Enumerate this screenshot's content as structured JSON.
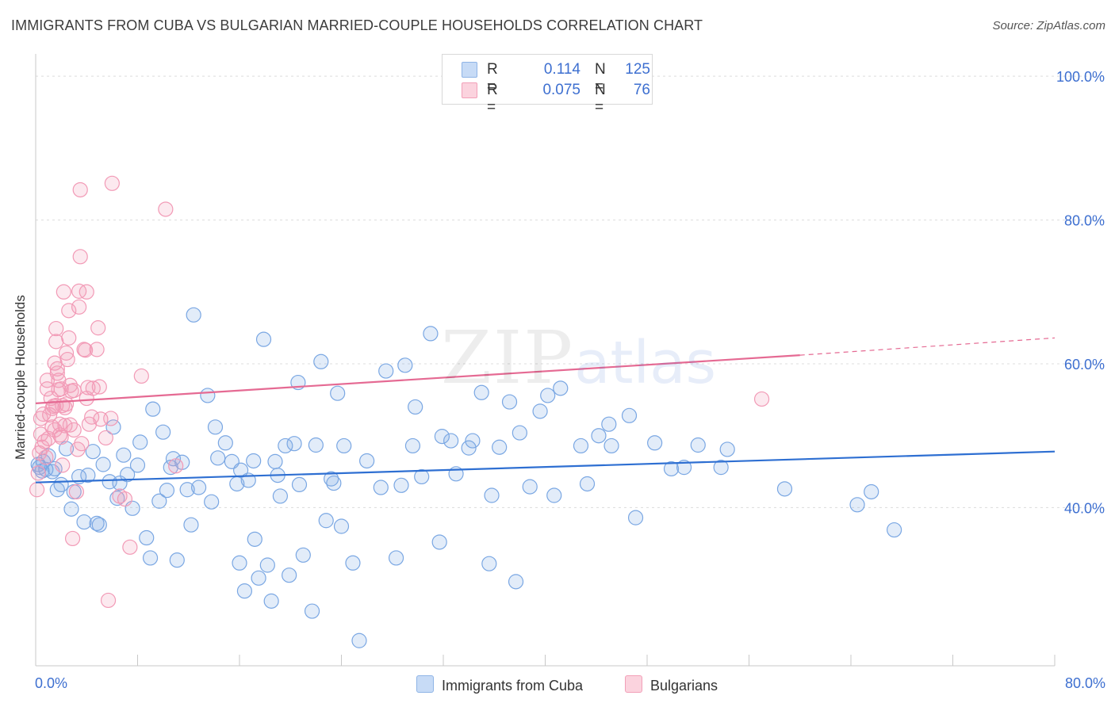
{
  "title": "IMMIGRANTS FROM CUBA VS BULGARIAN MARRIED-COUPLE HOUSEHOLDS CORRELATION CHART",
  "source": "Source: ZipAtlas.com",
  "watermark": {
    "zip": "ZIP",
    "atlas": "atlas"
  },
  "legend_top": [
    {
      "r_label": "R =",
      "r_value": "0.114",
      "n_label": "N =",
      "n_value": "125",
      "color": "#a9c8f0"
    },
    {
      "r_label": "R =",
      "r_value": "0.075",
      "n_label": "N =",
      "n_value": "76",
      "color": "#f7b7c9"
    }
  ],
  "legend_bottom": [
    {
      "label": "Immigrants from Cuba",
      "color": "#a9c8f0"
    },
    {
      "label": "Bulgarians",
      "color": "#f7b7c9"
    }
  ],
  "colors": {
    "cuba_point": "#7aa7e3",
    "cuba_line": "#2e6fd2",
    "bulg_point": "#f29ab6",
    "bulg_line": "#e56a93",
    "tick_label": "#3d6fd0"
  },
  "chart_data": {
    "type": "scatter",
    "title": "IMMIGRANTS FROM CUBA VS BULGARIAN MARRIED-COUPLE HOUSEHOLDS CORRELATION CHART",
    "xlabel": "",
    "ylabel": "Married-couple Households",
    "xlim": [
      0,
      80
    ],
    "ylim": [
      18,
      102
    ],
    "x_tick_labels": [
      "0.0%",
      "80.0%"
    ],
    "y_ticks": [
      40,
      60,
      80,
      100
    ],
    "y_tick_labels": [
      "40.0%",
      "60.0%",
      "80.0%",
      "100.0%"
    ],
    "grid": true,
    "legend_position": "top-center",
    "series": [
      {
        "name": "Immigrants from Cuba",
        "trend": {
          "x": [
            0,
            80
          ],
          "y": [
            43.5,
            47.8
          ]
        },
        "points": [
          [
            0.2,
            46.0
          ],
          [
            0.3,
            45.6
          ],
          [
            0.5,
            45.1
          ],
          [
            0.6,
            46.4
          ],
          [
            0.8,
            45.3
          ],
          [
            1.0,
            47.2
          ],
          [
            1.3,
            45.0
          ],
          [
            1.5,
            45.4
          ],
          [
            1.7,
            42.5
          ],
          [
            2.0,
            43.2
          ],
          [
            2.4,
            48.2
          ],
          [
            2.8,
            39.8
          ],
          [
            3.0,
            42.2
          ],
          [
            3.4,
            44.3
          ],
          [
            3.8,
            38.0
          ],
          [
            4.1,
            44.5
          ],
          [
            4.5,
            47.8
          ],
          [
            4.8,
            37.8
          ],
          [
            5.0,
            37.6
          ],
          [
            5.3,
            46.0
          ],
          [
            5.8,
            43.6
          ],
          [
            6.1,
            51.2
          ],
          [
            6.4,
            41.3
          ],
          [
            6.6,
            43.4
          ],
          [
            6.9,
            47.3
          ],
          [
            7.2,
            44.6
          ],
          [
            7.6,
            39.9
          ],
          [
            8.0,
            45.9
          ],
          [
            8.2,
            49.1
          ],
          [
            8.7,
            35.8
          ],
          [
            9.0,
            33.0
          ],
          [
            9.2,
            53.7
          ],
          [
            9.7,
            40.9
          ],
          [
            10.0,
            50.5
          ],
          [
            10.3,
            42.4
          ],
          [
            10.6,
            45.6
          ],
          [
            10.8,
            46.8
          ],
          [
            11.1,
            32.7
          ],
          [
            11.5,
            46.3
          ],
          [
            11.9,
            42.5
          ],
          [
            12.2,
            37.6
          ],
          [
            12.4,
            66.8
          ],
          [
            12.8,
            42.8
          ],
          [
            13.5,
            55.6
          ],
          [
            13.8,
            40.8
          ],
          [
            14.1,
            51.2
          ],
          [
            14.3,
            46.9
          ],
          [
            14.9,
            49.0
          ],
          [
            15.4,
            46.4
          ],
          [
            15.8,
            43.3
          ],
          [
            16.0,
            32.3
          ],
          [
            16.1,
            45.2
          ],
          [
            16.4,
            28.4
          ],
          [
            16.7,
            43.8
          ],
          [
            17.1,
            46.5
          ],
          [
            17.2,
            35.6
          ],
          [
            17.5,
            30.2
          ],
          [
            17.9,
            63.4
          ],
          [
            18.2,
            32.0
          ],
          [
            18.5,
            27.0
          ],
          [
            18.8,
            46.4
          ],
          [
            19.0,
            44.5
          ],
          [
            19.2,
            41.6
          ],
          [
            19.6,
            48.6
          ],
          [
            19.9,
            30.6
          ],
          [
            20.3,
            48.9
          ],
          [
            20.6,
            57.4
          ],
          [
            20.7,
            43.2
          ],
          [
            21.0,
            33.4
          ],
          [
            21.7,
            25.6
          ],
          [
            22.0,
            48.7
          ],
          [
            22.4,
            60.3
          ],
          [
            22.8,
            38.2
          ],
          [
            23.2,
            44.0
          ],
          [
            23.4,
            43.4
          ],
          [
            23.7,
            55.9
          ],
          [
            24.0,
            37.4
          ],
          [
            24.2,
            48.6
          ],
          [
            24.9,
            32.3
          ],
          [
            25.4,
            21.5
          ],
          [
            26.0,
            46.5
          ],
          [
            27.1,
            42.8
          ],
          [
            27.5,
            59.0
          ],
          [
            28.3,
            33.0
          ],
          [
            28.7,
            43.1
          ],
          [
            29.0,
            59.8
          ],
          [
            29.6,
            48.6
          ],
          [
            29.8,
            54.0
          ],
          [
            30.3,
            44.3
          ],
          [
            31.0,
            64.2
          ],
          [
            31.7,
            35.2
          ],
          [
            31.9,
            49.9
          ],
          [
            32.6,
            49.3
          ],
          [
            33.0,
            44.7
          ],
          [
            34.0,
            48.3
          ],
          [
            34.3,
            49.3
          ],
          [
            35.0,
            56.0
          ],
          [
            35.6,
            32.2
          ],
          [
            35.8,
            41.7
          ],
          [
            36.4,
            48.4
          ],
          [
            37.2,
            54.7
          ],
          [
            37.7,
            29.7
          ],
          [
            38.0,
            50.4
          ],
          [
            38.8,
            42.9
          ],
          [
            39.6,
            53.4
          ],
          [
            40.2,
            55.6
          ],
          [
            40.7,
            41.7
          ],
          [
            41.2,
            56.6
          ],
          [
            42.8,
            48.6
          ],
          [
            43.3,
            43.3
          ],
          [
            44.2,
            50.0
          ],
          [
            45.0,
            51.6
          ],
          [
            45.2,
            48.6
          ],
          [
            46.6,
            52.8
          ],
          [
            47.1,
            38.6
          ],
          [
            48.6,
            49.0
          ],
          [
            49.9,
            45.4
          ],
          [
            50.9,
            45.6
          ],
          [
            52.0,
            48.7
          ],
          [
            53.8,
            45.6
          ],
          [
            54.3,
            48.1
          ],
          [
            58.8,
            42.6
          ],
          [
            64.5,
            40.4
          ],
          [
            65.6,
            42.2
          ],
          [
            67.4,
            36.9
          ]
        ]
      },
      {
        "name": "Bulgarians",
        "trend": {
          "x": [
            0,
            60
          ],
          "y": [
            54.5,
            61.2
          ]
        },
        "trend_dashed": {
          "x": [
            60,
            80
          ],
          "y": [
            61.2,
            63.6
          ]
        },
        "points": [
          [
            0.1,
            42.5
          ],
          [
            0.2,
            44.8
          ],
          [
            0.3,
            47.6
          ],
          [
            0.4,
            50.2
          ],
          [
            0.4,
            52.4
          ],
          [
            0.5,
            48.4
          ],
          [
            0.6,
            53.0
          ],
          [
            0.7,
            49.2
          ],
          [
            0.8,
            47.0
          ],
          [
            0.9,
            57.7
          ],
          [
            0.9,
            56.5
          ],
          [
            1.0,
            49.6
          ],
          [
            1.1,
            52.9
          ],
          [
            1.2,
            55.2
          ],
          [
            1.3,
            51.2
          ],
          [
            1.3,
            53.8
          ],
          [
            1.4,
            54.1
          ],
          [
            1.5,
            50.8
          ],
          [
            1.5,
            60.1
          ],
          [
            1.6,
            54.2
          ],
          [
            1.6,
            63.1
          ],
          [
            1.6,
            64.9
          ],
          [
            1.7,
            59.3
          ],
          [
            1.7,
            58.7
          ],
          [
            1.8,
            57.7
          ],
          [
            1.8,
            56.4
          ],
          [
            1.9,
            50.1
          ],
          [
            1.9,
            51.6
          ],
          [
            2.0,
            56.5
          ],
          [
            2.0,
            49.8
          ],
          [
            2.1,
            54.2
          ],
          [
            2.1,
            45.9
          ],
          [
            2.2,
            70.0
          ],
          [
            2.3,
            51.4
          ],
          [
            2.3,
            53.9
          ],
          [
            2.4,
            54.4
          ],
          [
            2.4,
            61.5
          ],
          [
            2.5,
            60.6
          ],
          [
            2.6,
            67.4
          ],
          [
            2.6,
            63.6
          ],
          [
            2.7,
            57.0
          ],
          [
            2.7,
            51.5
          ],
          [
            2.8,
            56.2
          ],
          [
            2.9,
            35.7
          ],
          [
            3.0,
            56.3
          ],
          [
            3.0,
            50.8
          ],
          [
            3.2,
            42.2
          ],
          [
            3.3,
            48.1
          ],
          [
            3.4,
            70.1
          ],
          [
            3.4,
            67.9
          ],
          [
            3.5,
            74.9
          ],
          [
            3.5,
            84.2
          ],
          [
            3.6,
            48.9
          ],
          [
            3.8,
            62.0
          ],
          [
            3.9,
            61.9
          ],
          [
            4.0,
            70.0
          ],
          [
            4.0,
            55.2
          ],
          [
            4.1,
            56.7
          ],
          [
            4.2,
            51.6
          ],
          [
            4.4,
            52.6
          ],
          [
            4.5,
            56.6
          ],
          [
            4.8,
            62.0
          ],
          [
            4.9,
            65.0
          ],
          [
            5.0,
            56.8
          ],
          [
            5.1,
            52.3
          ],
          [
            5.5,
            49.7
          ],
          [
            5.7,
            27.1
          ],
          [
            5.9,
            52.4
          ],
          [
            6.0,
            85.1
          ],
          [
            6.6,
            41.6
          ],
          [
            7.0,
            41.2
          ],
          [
            7.4,
            34.5
          ],
          [
            8.3,
            58.3
          ],
          [
            10.2,
            81.5
          ],
          [
            11.0,
            45.8
          ],
          [
            57.0,
            55.1
          ]
        ]
      }
    ]
  }
}
